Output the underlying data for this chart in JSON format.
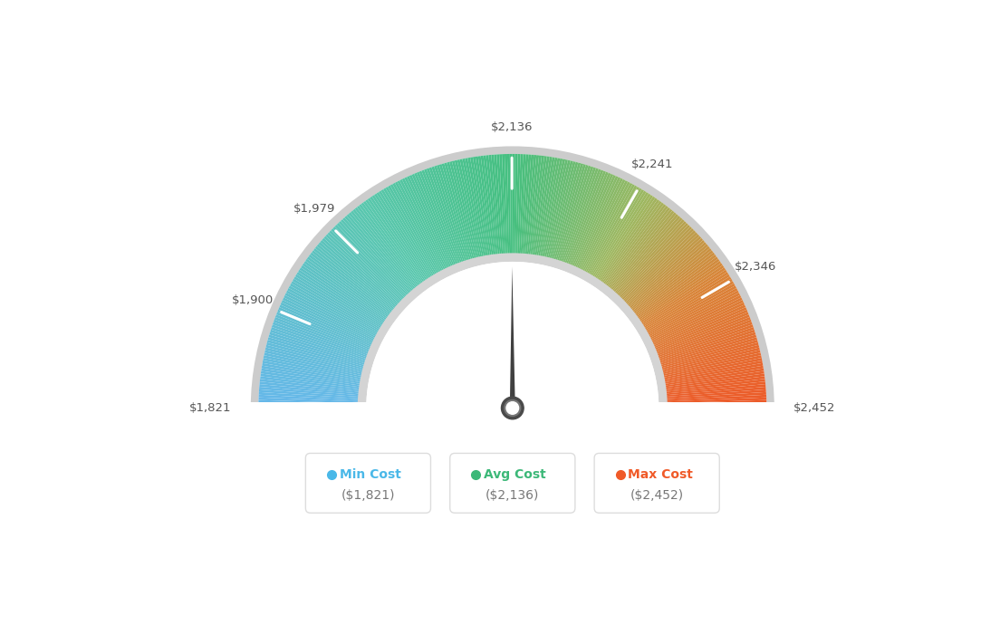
{
  "min_val": 1821,
  "max_val": 2452,
  "avg_val": 2136,
  "needle_value": 2136,
  "tick_labels": [
    "$1,821",
    "$1,900",
    "$1,979",
    "$2,136",
    "$2,241",
    "$2,346",
    "$2,452"
  ],
  "tick_values": [
    1821,
    1900,
    1979,
    2136,
    2241,
    2346,
    2452
  ],
  "legend_items": [
    {
      "label": "Min Cost",
      "value": "($1,821)",
      "color": "#4ab8e8"
    },
    {
      "label": "Avg Cost",
      "value": "($2,136)",
      "color": "#3cb878"
    },
    {
      "label": "Max Cost",
      "value": "($2,452)",
      "color": "#f05a28"
    }
  ],
  "color_stops": [
    [
      0.0,
      [
        0.4,
        0.72,
        0.92
      ]
    ],
    [
      0.3,
      [
        0.35,
        0.78,
        0.68
      ]
    ],
    [
      0.5,
      [
        0.27,
        0.75,
        0.5
      ]
    ],
    [
      0.68,
      [
        0.62,
        0.72,
        0.38
      ]
    ],
    [
      0.82,
      [
        0.85,
        0.52,
        0.22
      ]
    ],
    [
      1.0,
      [
        0.93,
        0.35,
        0.16
      ]
    ]
  ],
  "background_color": "#ffffff",
  "outer_border_color": "#cccccc",
  "inner_border_color": "#d4d4d4",
  "needle_color": "#404040",
  "tick_color": "#ffffff",
  "label_color": "#555555"
}
